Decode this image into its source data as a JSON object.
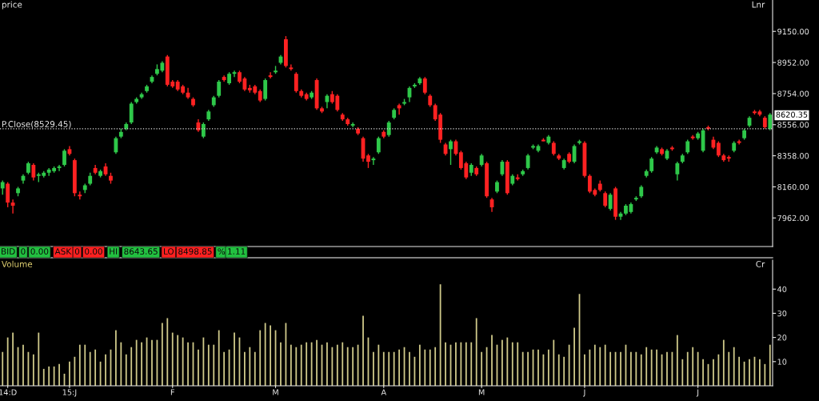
{
  "chart_data": [
    {
      "type": "candlestick",
      "title": "price",
      "categories": [
        null,
        null,
        null,
        null,
        null,
        null,
        null,
        null,
        null,
        null,
        null,
        null,
        null,
        null,
        null,
        null,
        null,
        null,
        null,
        null,
        null,
        null,
        null,
        null,
        null,
        null,
        null,
        null,
        null,
        null,
        null,
        null,
        null,
        null,
        null,
        null,
        null,
        null,
        null,
        null,
        null,
        null,
        null,
        null,
        null,
        null,
        null,
        null,
        null,
        null,
        null,
        null,
        null,
        null,
        null,
        null,
        null,
        null,
        null,
        null,
        null,
        null,
        null,
        null,
        null,
        null,
        null,
        null,
        null,
        null,
        null,
        null,
        null,
        null,
        null,
        null,
        null,
        null,
        null,
        null,
        null,
        null,
        null,
        null,
        null,
        null,
        null,
        null,
        null,
        null,
        null,
        null,
        null,
        null,
        null,
        null,
        null,
        null,
        null,
        null,
        null,
        null,
        null,
        null,
        null,
        null,
        null,
        null,
        null,
        null,
        null,
        null,
        null,
        null,
        null,
        null,
        null,
        null,
        null,
        null,
        null,
        null,
        null,
        null,
        null,
        null,
        null,
        null,
        null,
        null,
        null,
        null,
        null,
        null,
        null,
        null,
        null,
        null,
        null,
        null,
        null,
        null,
        null,
        null,
        null,
        null,
        null,
        null,
        null,
        null
      ],
      "ohlc": [
        [
          8150,
          8200,
          8110,
          8190
        ],
        [
          8180,
          8190,
          8030,
          8060
        ],
        [
          8060,
          8080,
          7990,
          8040
        ],
        [
          8120,
          8160,
          8100,
          8150
        ],
        [
          8200,
          8240,
          8180,
          8230
        ],
        [
          8250,
          8320,
          8240,
          8310
        ],
        [
          8300,
          8310,
          8200,
          8220
        ],
        [
          8230,
          8250,
          8190,
          8240
        ],
        [
          8230,
          8260,
          8220,
          8250
        ],
        [
          8250,
          8280,
          8230,
          8270
        ],
        [
          8260,
          8290,
          8250,
          8280
        ],
        [
          8280,
          8300,
          8260,
          8290
        ],
        [
          8300,
          8400,
          8290,
          8390
        ],
        [
          8400,
          8420,
          8360,
          8370
        ],
        [
          8330,
          8340,
          8100,
          8120
        ],
        [
          8110,
          8130,
          8080,
          8100
        ],
        [
          8140,
          8180,
          8120,
          8170
        ],
        [
          8180,
          8250,
          8170,
          8230
        ],
        [
          8280,
          8300,
          8240,
          8250
        ],
        [
          8230,
          8270,
          8220,
          8260
        ],
        [
          8290,
          8310,
          8230,
          8240
        ],
        [
          8230,
          8250,
          8180,
          8200
        ],
        [
          8380,
          8480,
          8370,
          8470
        ],
        [
          8480,
          8530,
          8470,
          8510
        ],
        [
          8530,
          8570,
          8520,
          8560
        ],
        [
          8570,
          8700,
          8560,
          8690
        ],
        [
          8700,
          8730,
          8690,
          8720
        ],
        [
          8730,
          8760,
          8720,
          8750
        ],
        [
          8770,
          8810,
          8760,
          8800
        ],
        [
          8830,
          8870,
          8820,
          8860
        ],
        [
          8880,
          8940,
          8870,
          8910
        ],
        [
          8900,
          8960,
          8890,
          8950
        ],
        [
          8990,
          9000,
          8800,
          8810
        ],
        [
          8830,
          8840,
          8790,
          8800
        ],
        [
          8830,
          8840,
          8770,
          8780
        ],
        [
          8800,
          8810,
          8750,
          8760
        ],
        [
          8760,
          8790,
          8720,
          8730
        ],
        [
          8720,
          8730,
          8670,
          8680
        ],
        [
          8570,
          8590,
          8510,
          8520
        ],
        [
          8480,
          8570,
          8470,
          8560
        ],
        [
          8590,
          8650,
          8580,
          8640
        ],
        [
          8680,
          8740,
          8670,
          8730
        ],
        [
          8740,
          8840,
          8730,
          8830
        ],
        [
          8860,
          8870,
          8830,
          8840
        ],
        [
          8820,
          8890,
          8810,
          8880
        ],
        [
          8880,
          8900,
          8860,
          8890
        ],
        [
          8890,
          8900,
          8820,
          8830
        ],
        [
          8850,
          8860,
          8770,
          8780
        ],
        [
          8790,
          8810,
          8760,
          8775
        ],
        [
          8800,
          8810,
          8750,
          8760
        ],
        [
          8770,
          8780,
          8700,
          8710
        ],
        [
          8720,
          8850,
          8710,
          8840
        ],
        [
          8870,
          8890,
          8850,
          8860
        ],
        [
          8890,
          8930,
          8880,
          8900
        ],
        [
          8950,
          9000,
          8940,
          8990
        ],
        [
          9100,
          9120,
          8920,
          8930
        ],
        [
          8920,
          8940,
          8900,
          8910
        ],
        [
          8880,
          8890,
          8760,
          8770
        ],
        [
          8770,
          8780,
          8730,
          8740
        ],
        [
          8750,
          8760,
          8710,
          8720
        ],
        [
          8730,
          8770,
          8720,
          8760
        ],
        [
          8840,
          8850,
          8650,
          8660
        ],
        [
          8660,
          8670,
          8630,
          8640
        ],
        [
          8700,
          8750,
          8660,
          8740
        ],
        [
          8750,
          8770,
          8690,
          8700
        ],
        [
          8740,
          8750,
          8640,
          8650
        ],
        [
          8620,
          8630,
          8580,
          8590
        ],
        [
          8590,
          8600,
          8550,
          8560
        ],
        [
          8550,
          8570,
          8540,
          8560
        ],
        [
          8530,
          8540,
          8490,
          8500
        ],
        [
          8470,
          8480,
          8320,
          8340
        ],
        [
          8360,
          8370,
          8280,
          8320
        ],
        [
          8330,
          8350,
          8300,
          8340
        ],
        [
          8380,
          8480,
          8370,
          8470
        ],
        [
          8510,
          8520,
          8470,
          8480
        ],
        [
          8490,
          8580,
          8480,
          8570
        ],
        [
          8600,
          8660,
          8590,
          8650
        ],
        [
          8680,
          8690,
          8620,
          8660
        ],
        [
          8690,
          8720,
          8680,
          8700
        ],
        [
          8730,
          8800,
          8700,
          8790
        ],
        [
          8800,
          8820,
          8790,
          8810
        ],
        [
          8820,
          8860,
          8810,
          8850
        ],
        [
          8850,
          8860,
          8750,
          8760
        ],
        [
          8740,
          8750,
          8670,
          8680
        ],
        [
          8680,
          8690,
          8580,
          8590
        ],
        [
          8620,
          8630,
          8440,
          8460
        ],
        [
          8430,
          8440,
          8360,
          8370
        ],
        [
          8400,
          8460,
          8300,
          8450
        ],
        [
          8450,
          8460,
          8360,
          8370
        ],
        [
          8380,
          8390,
          8270,
          8280
        ],
        [
          8310,
          8320,
          8210,
          8220
        ],
        [
          8250,
          8310,
          8230,
          8300
        ],
        [
          8280,
          8290,
          8230,
          8240
        ],
        [
          8300,
          8370,
          8290,
          8360
        ],
        [
          8310,
          8320,
          8090,
          8100
        ],
        [
          8080,
          8090,
          8000,
          8030
        ],
        [
          8130,
          8200,
          8120,
          8190
        ],
        [
          8240,
          8330,
          8230,
          8320
        ],
        [
          8320,
          8330,
          8110,
          8120
        ],
        [
          8180,
          8240,
          8170,
          8230
        ],
        [
          8220,
          8240,
          8200,
          8210
        ],
        [
          8240,
          8270,
          8230,
          8260
        ],
        [
          8280,
          8370,
          8270,
          8360
        ],
        [
          8410,
          8430,
          8400,
          8420
        ],
        [
          8390,
          8430,
          8380,
          8420
        ],
        [
          8460,
          8470,
          8450,
          8450
        ],
        [
          8440,
          8490,
          8430,
          8480
        ],
        [
          8440,
          8450,
          8360,
          8370
        ],
        [
          8360,
          8370,
          8330,
          8340
        ],
        [
          8280,
          8340,
          8270,
          8330
        ],
        [
          8370,
          8380,
          8310,
          8320
        ],
        [
          8320,
          8430,
          8310,
          8420
        ],
        [
          8440,
          8460,
          8430,
          8450
        ],
        [
          8440,
          8450,
          8220,
          8230
        ],
        [
          8230,
          8240,
          8120,
          8130
        ],
        [
          8140,
          8150,
          8100,
          8110
        ],
        [
          8180,
          8200,
          8130,
          8140
        ],
        [
          8120,
          8130,
          8030,
          8040
        ],
        [
          8020,
          8120,
          8010,
          8110
        ],
        [
          8150,
          8160,
          7950,
          7970
        ],
        [
          7970,
          8000,
          7950,
          7990
        ],
        [
          7990,
          8050,
          7980,
          8040
        ],
        [
          8000,
          8060,
          7990,
          8050
        ],
        [
          8080,
          8100,
          8070,
          8090
        ],
        [
          8100,
          8170,
          8090,
          8160
        ],
        [
          8230,
          8270,
          8220,
          8260
        ],
        [
          8260,
          8350,
          8250,
          8340
        ],
        [
          8380,
          8420,
          8370,
          8410
        ],
        [
          8400,
          8410,
          8360,
          8370
        ],
        [
          8340,
          8400,
          8330,
          8390
        ],
        [
          8410,
          8420,
          8390,
          8400
        ],
        [
          8240,
          8320,
          8200,
          8310
        ],
        [
          8320,
          8370,
          8310,
          8360
        ],
        [
          8380,
          8460,
          8370,
          8450
        ],
        [
          8480,
          8490,
          8460,
          8470
        ],
        [
          8470,
          8510,
          8460,
          8500
        ],
        [
          8390,
          8530,
          8380,
          8520
        ],
        [
          8540,
          8550,
          8520,
          8530
        ],
        [
          8460,
          8480,
          8400,
          8410
        ],
        [
          8440,
          8450,
          8350,
          8360
        ],
        [
          8360,
          8370,
          8320,
          8330
        ],
        [
          8350,
          8360,
          8320,
          8340
        ],
        [
          8390,
          8450,
          8380,
          8440
        ],
        [
          8450,
          8460,
          8430,
          8440
        ],
        [
          8470,
          8530,
          8460,
          8520
        ],
        [
          8550,
          8610,
          8540,
          8600
        ],
        [
          8640,
          8650,
          8620,
          8630
        ],
        [
          8640,
          8650,
          8610,
          8620
        ],
        [
          8600,
          8610,
          8530,
          8540
        ],
        [
          8530,
          8630,
          8520,
          8620
        ]
      ],
      "ylim": [
        7780,
        9350
      ],
      "yticks": [
        {
          "value": 7962,
          "label": "7962.00"
        },
        {
          "value": 8160,
          "label": "8160.00"
        },
        {
          "value": 8358,
          "label": "8358.00"
        },
        {
          "value": 8556,
          "label": "8556.00"
        },
        {
          "value": 8754,
          "label": "8754.00"
        },
        {
          "value": 8952,
          "label": "8952.00"
        },
        {
          "value": 9150,
          "label": "9150.00"
        }
      ],
      "ref_lines": [
        {
          "axis": "y",
          "value": 8529.45,
          "label": "P.Close(8529.45)",
          "color": "#dddddd",
          "line_style": "dotted"
        }
      ],
      "annotations": [
        "Lnr",
        "8620.35",
        "BID",
        "0",
        "0.00",
        "ASK",
        "0",
        "0.00",
        "HI",
        "8643.65",
        "LO",
        "8498.85",
        "%",
        "1.11"
      ]
    },
    {
      "type": "bar",
      "title": "Volume",
      "color": "#cfc98a",
      "categories": [
        null,
        "14:D",
        null,
        null,
        null,
        null,
        null,
        null,
        null,
        null,
        null,
        null,
        null,
        "15:J",
        null,
        null,
        null,
        null,
        null,
        null,
        null,
        null,
        null,
        null,
        null,
        null,
        null,
        null,
        null,
        null,
        null,
        null,
        null,
        "F",
        null,
        null,
        null,
        null,
        null,
        null,
        null,
        null,
        null,
        null,
        null,
        null,
        null,
        null,
        null,
        null,
        null,
        null,
        null,
        "M",
        null,
        null,
        null,
        null,
        null,
        null,
        null,
        null,
        null,
        null,
        null,
        null,
        null,
        null,
        null,
        null,
        null,
        null,
        null,
        null,
        "A",
        null,
        null,
        null,
        null,
        null,
        null,
        null,
        null,
        null,
        null,
        null,
        null,
        null,
        null,
        null,
        null,
        null,
        null,
        "M",
        null,
        null,
        null,
        null,
        null,
        null,
        null,
        null,
        null,
        null,
        null,
        null,
        null,
        null,
        null,
        null,
        null,
        null,
        null,
        "J",
        null,
        null,
        null,
        null,
        null,
        null,
        null,
        null,
        null,
        null,
        null,
        null,
        null,
        null,
        null,
        null,
        null,
        null,
        null,
        null,
        null,
        "J",
        null,
        null,
        null,
        null,
        null,
        null,
        null,
        null,
        null,
        null,
        null,
        null,
        null,
        null
      ],
      "values": [
        14,
        20,
        22,
        16,
        17,
        14,
        13,
        22,
        7,
        8,
        8,
        9,
        5,
        10,
        12,
        17,
        17,
        14,
        15,
        10,
        13,
        15,
        23,
        18,
        13,
        16,
        19,
        18,
        20,
        19,
        19,
        26,
        28,
        22,
        21,
        20,
        18,
        18,
        15,
        20,
        17,
        17,
        23,
        14,
        15,
        22,
        20,
        14,
        16,
        14,
        23,
        26,
        25,
        23,
        18,
        26,
        17,
        16,
        17,
        18,
        18,
        19,
        17,
        18,
        16,
        17,
        18,
        16,
        16,
        17,
        29,
        20,
        14,
        17,
        14,
        14,
        14,
        15,
        16,
        14,
        12,
        17,
        15,
        15,
        16,
        42,
        18,
        17,
        18,
        18,
        18,
        18,
        28,
        14,
        16,
        21,
        17,
        19,
        20,
        18,
        18,
        14,
        14,
        15,
        15,
        13,
        15,
        19,
        13,
        12,
        17,
        24,
        38,
        13,
        15,
        17,
        16,
        17,
        14,
        14,
        14,
        17,
        14,
        14,
        13,
        16,
        15,
        15,
        13,
        14,
        14,
        21,
        11,
        14,
        16,
        14,
        11,
        9,
        11,
        13,
        19,
        14,
        16,
        12,
        10,
        11,
        12,
        11,
        9,
        17
      ],
      "ylim": [
        0,
        52
      ],
      "yticks": [
        10,
        20,
        30,
        40
      ],
      "annotations": [
        "Cr"
      ]
    }
  ]
}
